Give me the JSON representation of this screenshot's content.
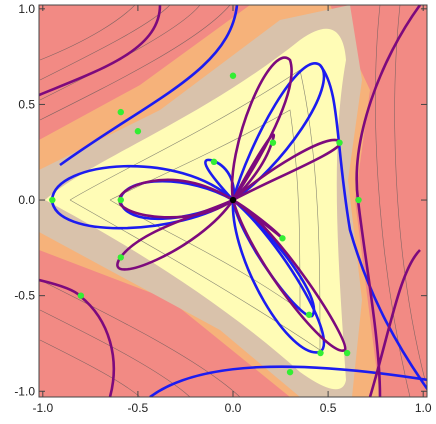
{
  "chart_data": {
    "type": "scatter",
    "xlim": [
      -1.02,
      1.02
    ],
    "ylim": [
      -1.03,
      1.02
    ],
    "xticks": [
      {
        "value": -1,
        "label": "-1.0"
      },
      -0.5,
      {
        "value": 0,
        "label": "0.0"
      },
      0.5,
      {
        "value": 1,
        "label": "1.0"
      }
    ],
    "yticks": [
      {
        "value": -1,
        "label": "-1.0"
      },
      -0.5,
      {
        "value": 0,
        "label": "0.0"
      },
      0.5,
      {
        "value": 1,
        "label": "1.0"
      }
    ],
    "series": [
      {
        "color": "#33ee33",
        "x": [
          0.0,
          -0.59,
          -0.5,
          0.21,
          0.56,
          -0.1,
          -0.95,
          -0.59,
          0.66,
          0.26,
          -0.59,
          -0.8,
          0.4,
          0.46,
          0.6,
          0.3
        ],
        "values": [
          0.65,
          0.46,
          0.36,
          0.3,
          0.3,
          0.2,
          0.0,
          0.0,
          0.0,
          -0.2,
          -0.3,
          -0.5,
          -0.6,
          -0.8,
          -0.8,
          -0.9
        ]
      },
      {
        "color": "#000000",
        "x": [
          0.0
        ],
        "values": [
          0.0
        ]
      }
    ]
  }
}
